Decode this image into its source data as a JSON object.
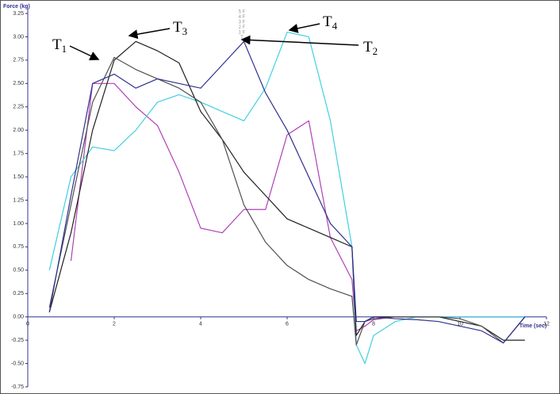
{
  "chart_data": {
    "type": "line",
    "y_label": "Force (kg)",
    "x_label": "Time (sec)",
    "xlim": [
      0,
      12
    ],
    "ylim": [
      -0.75,
      3.25
    ],
    "xticks": [
      0,
      2,
      4,
      6,
      8,
      10,
      12
    ],
    "yticks": [
      {
        "value": 3.25,
        "label": "3.25"
      },
      {
        "value": 3,
        "label": "3.00"
      },
      {
        "value": 2.75,
        "label": "2.75"
      },
      {
        "value": 2.5,
        "label": "2.50"
      },
      {
        "value": 2.25,
        "label": "2.25"
      },
      {
        "value": 2,
        "label": "2.00"
      },
      {
        "value": 1.75,
        "label": "1.75"
      },
      {
        "value": 1.5,
        "label": "1.50"
      },
      {
        "value": 1.25,
        "label": "1.25"
      },
      {
        "value": 1,
        "label": "1.00"
      },
      {
        "value": 0.75,
        "label": "0.75"
      },
      {
        "value": 0.5,
        "label": "0.50"
      },
      {
        "value": 0.25,
        "label": "0.25"
      },
      {
        "value": 0,
        "label": "0.00"
      },
      {
        "value": -0.25,
        "label": "-0.25"
      },
      {
        "value": -0.5,
        "label": "-0.50"
      },
      {
        "value": -0.75,
        "label": "-0.75"
      }
    ],
    "x": [
      0,
      0.5,
      1,
      1.5,
      2,
      2.5,
      3,
      3.5,
      4,
      4.5,
      5,
      5.5,
      6,
      6.5,
      7,
      7.5,
      7.6,
      7.8,
      8,
      8.5,
      9,
      9.5,
      10,
      10.5,
      11,
      11.5
    ],
    "series": [
      {
        "color": "#b040b8",
        "values": [
          null,
          null,
          0.6,
          2.5,
          2.5,
          2.25,
          2.05,
          1.55,
          0.95,
          0.9,
          1.15,
          1.15,
          1.95,
          2.1,
          0.85,
          0.4,
          -0.15,
          -0.1,
          -0.03,
          0,
          0,
          0,
          0,
          0,
          0,
          0
        ]
      },
      {
        "color": "#40d0e0",
        "values": [
          null,
          0.5,
          1.5,
          1.82,
          1.78,
          2.0,
          2.3,
          2.38,
          2.3,
          2.2,
          2.1,
          2.45,
          3.05,
          3.0,
          2.1,
          0.75,
          -0.3,
          -0.5,
          -0.2,
          -0.05,
          0,
          0,
          0,
          0,
          0,
          0
        ]
      },
      {
        "color": "#202020",
        "values": [
          null,
          0.05,
          0.9,
          2.0,
          2.75,
          2.95,
          2.85,
          2.72,
          2.2,
          1.9,
          1.55,
          1.3,
          1.05,
          0.95,
          0.85,
          0.75,
          -0.2,
          -0.05,
          0,
          0,
          0,
          0,
          -0.05,
          -0.1,
          -0.25,
          -0.25
        ]
      },
      {
        "color": "#505050",
        "values": [
          null,
          0.1,
          1.2,
          2.3,
          2.78,
          2.65,
          2.55,
          2.45,
          2.3,
          1.9,
          1.2,
          0.8,
          0.55,
          0.4,
          0.3,
          0.22,
          -0.3,
          -0.05,
          -0.02,
          0,
          0,
          0,
          -0.02,
          -0.1,
          -0.28,
          0
        ]
      },
      {
        "color": "#303090",
        "values": [
          null,
          0.05,
          1.3,
          2.5,
          2.6,
          2.45,
          2.55,
          2.5,
          2.45,
          2.7,
          2.95,
          2.4,
          2.0,
          1.5,
          1.0,
          0.75,
          -0.05,
          -0.05,
          0,
          -0.02,
          -0.03,
          -0.05,
          -0.1,
          -0.15,
          -0.28,
          0
        ]
      }
    ],
    "markers": [
      "5 F",
      "4 F",
      "3 F",
      "2 F",
      "1 F",
      "T"
    ],
    "annotations": [
      {
        "label": "T",
        "sub": "1"
      },
      {
        "label": "T",
        "sub": "3"
      },
      {
        "label": "T",
        "sub": "4"
      },
      {
        "label": "T",
        "sub": "2"
      }
    ]
  }
}
